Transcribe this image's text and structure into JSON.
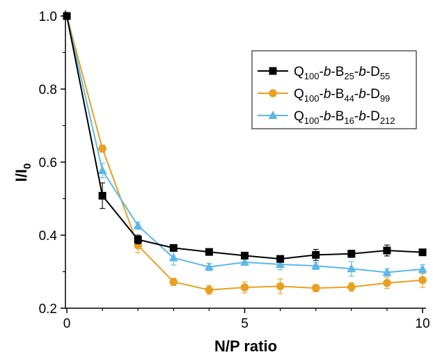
{
  "chart_data": {
    "type": "line",
    "xlabel": "N/P ratio",
    "ylabel": {
      "main": "I/I",
      "sub": "0"
    },
    "xlim": [
      0,
      10
    ],
    "ylim": [
      0.2,
      1.0
    ],
    "xticks": [
      0,
      5,
      10
    ],
    "xtick_labels": [
      "0",
      "5",
      "10"
    ],
    "yticks": [
      0.2,
      0.4,
      0.6,
      0.8,
      1.0
    ],
    "ytick_labels": [
      "0.2",
      "0.4",
      "0.6",
      "0.8",
      "1.0"
    ],
    "grid": false,
    "legend_position": "top-right",
    "x": [
      0,
      1,
      2,
      3,
      4,
      5,
      6,
      7,
      8,
      9,
      10
    ],
    "series": [
      {
        "name": "Q100-b-B25-b-D55",
        "name_parts": [
          {
            "t": "Q",
            "s": "normal",
            "style": "normal"
          },
          {
            "t": "100",
            "s": "sub",
            "style": "normal"
          },
          {
            "t": "-",
            "s": "normal",
            "style": "normal"
          },
          {
            "t": "b",
            "s": "normal",
            "style": "italic"
          },
          {
            "t": "-B",
            "s": "normal",
            "style": "normal"
          },
          {
            "t": "25",
            "s": "sub",
            "style": "normal"
          },
          {
            "t": "-",
            "s": "normal",
            "style": "normal"
          },
          {
            "t": "b",
            "s": "normal",
            "style": "italic"
          },
          {
            "t": "-D",
            "s": "normal",
            "style": "normal"
          },
          {
            "t": "55",
            "s": "sub",
            "style": "normal"
          }
        ],
        "color": "#000000",
        "marker": "square",
        "values": [
          1.0,
          0.508,
          0.388,
          0.365,
          0.354,
          0.344,
          0.335,
          0.346,
          0.349,
          0.358,
          0.353
        ],
        "errors": [
          0.0,
          0.035,
          0.012,
          0.006,
          0.006,
          0.008,
          0.008,
          0.015,
          0.01,
          0.015,
          0.007
        ]
      },
      {
        "name": "Q100-b-B44-b-D99",
        "name_parts": [
          {
            "t": "Q",
            "s": "normal",
            "style": "normal"
          },
          {
            "t": "100",
            "s": "sub",
            "style": "normal"
          },
          {
            "t": "-",
            "s": "normal",
            "style": "normal"
          },
          {
            "t": "b",
            "s": "normal",
            "style": "italic"
          },
          {
            "t": "-B",
            "s": "normal",
            "style": "normal"
          },
          {
            "t": "44",
            "s": "sub",
            "style": "normal"
          },
          {
            "t": "-",
            "s": "normal",
            "style": "normal"
          },
          {
            "t": "b",
            "s": "normal",
            "style": "italic"
          },
          {
            "t": "-D",
            "s": "normal",
            "style": "normal"
          },
          {
            "t": "99",
            "s": "sub",
            "style": "normal"
          }
        ],
        "color": "#E8A020",
        "marker": "circle",
        "values": [
          1.0,
          0.637,
          0.372,
          0.272,
          0.25,
          0.257,
          0.26,
          0.255,
          0.258,
          0.269,
          0.277
        ],
        "errors": [
          0.0,
          0.01,
          0.02,
          0.01,
          0.012,
          0.015,
          0.02,
          0.01,
          0.012,
          0.015,
          0.02
        ]
      },
      {
        "name": "Q100-b-B16-b-D212",
        "name_parts": [
          {
            "t": "Q",
            "s": "normal",
            "style": "normal"
          },
          {
            "t": "100",
            "s": "sub",
            "style": "normal"
          },
          {
            "t": "-",
            "s": "normal",
            "style": "normal"
          },
          {
            "t": "b",
            "s": "normal",
            "style": "italic"
          },
          {
            "t": "-B",
            "s": "normal",
            "style": "normal"
          },
          {
            "t": "16",
            "s": "sub",
            "style": "normal"
          },
          {
            "t": "-",
            "s": "normal",
            "style": "normal"
          },
          {
            "t": "b",
            "s": "normal",
            "style": "italic"
          },
          {
            "t": "-D",
            "s": "normal",
            "style": "normal"
          },
          {
            "t": "212",
            "s": "sub",
            "style": "normal"
          }
        ],
        "color": "#5BB8E8",
        "marker": "triangle",
        "values": [
          1.0,
          0.577,
          0.426,
          0.338,
          0.313,
          0.326,
          0.32,
          0.316,
          0.308,
          0.298,
          0.307
        ],
        "errors": [
          0.0,
          0.02,
          0.01,
          0.02,
          0.01,
          0.008,
          0.015,
          0.01,
          0.02,
          0.01,
          0.012
        ]
      }
    ]
  }
}
